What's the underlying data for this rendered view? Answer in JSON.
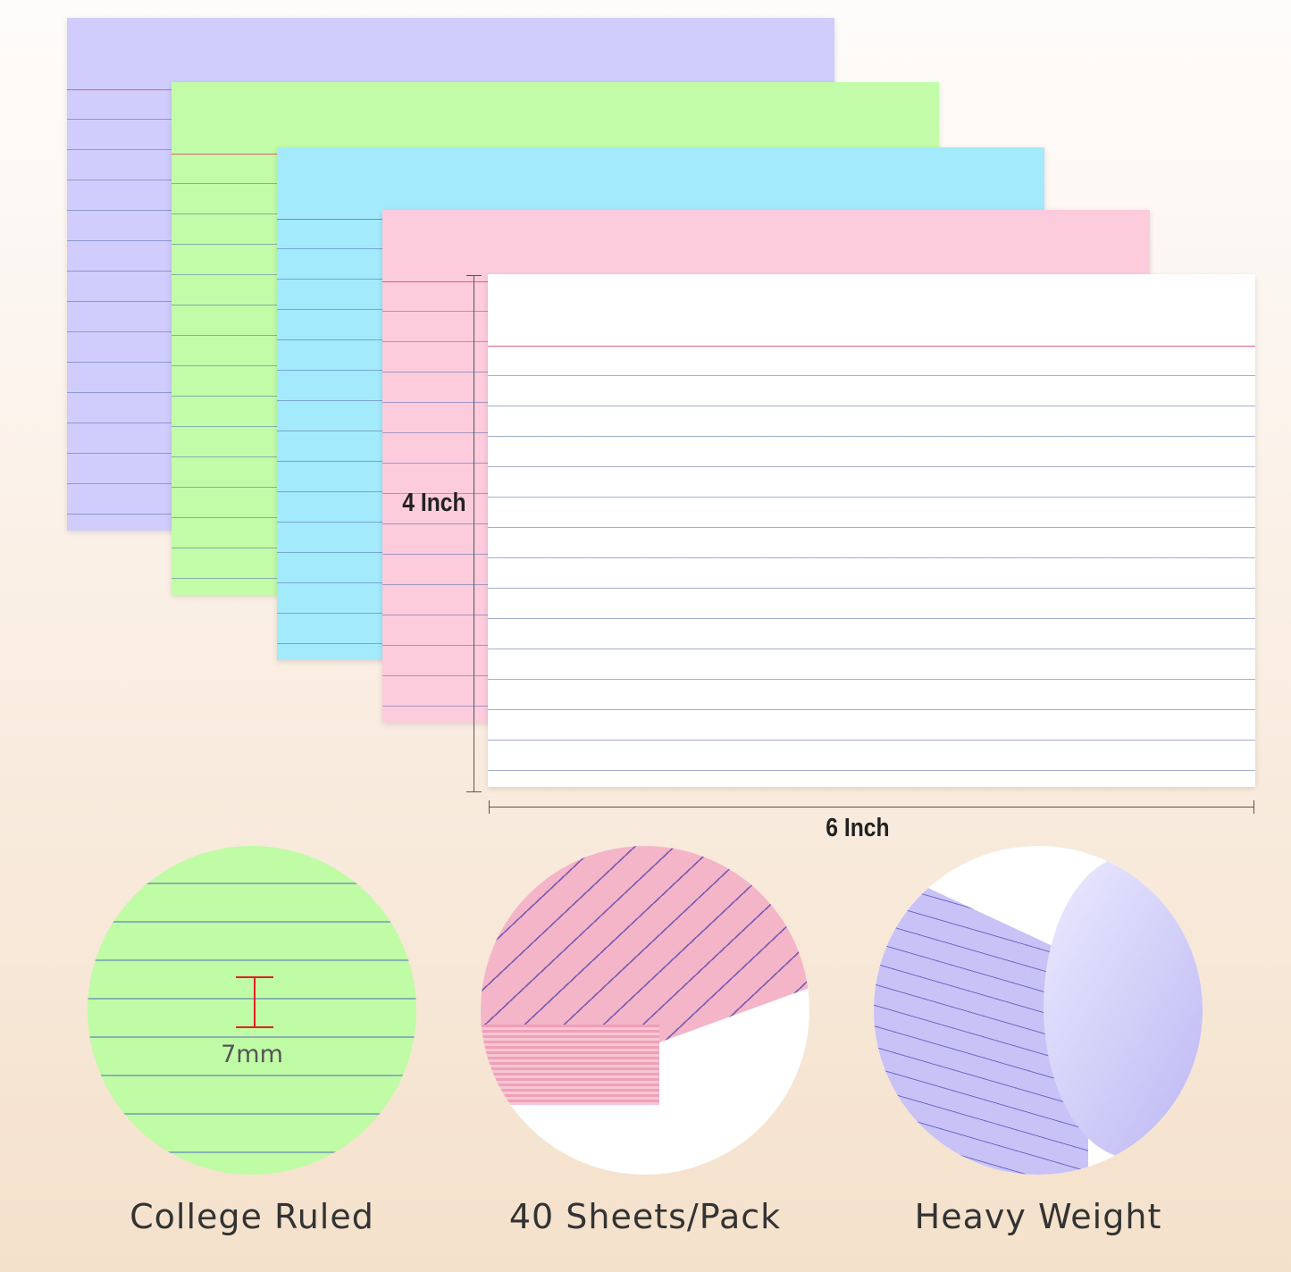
{
  "cards": [
    {
      "color": "#d0ccfb",
      "name": "purple"
    },
    {
      "color": "#c2fca8",
      "name": "green"
    },
    {
      "color": "#a3eafc",
      "name": "blue"
    },
    {
      "color": "#fccbdc",
      "name": "pink"
    },
    {
      "color": "#ffffff",
      "name": "white"
    }
  ],
  "dimensions": {
    "height": "4 Inch",
    "width": "6 Inch"
  },
  "features": [
    {
      "label": "College Ruled",
      "detail": "7mm"
    },
    {
      "label": "40 Sheets/Pack"
    },
    {
      "label": "Heavy Weight"
    }
  ]
}
